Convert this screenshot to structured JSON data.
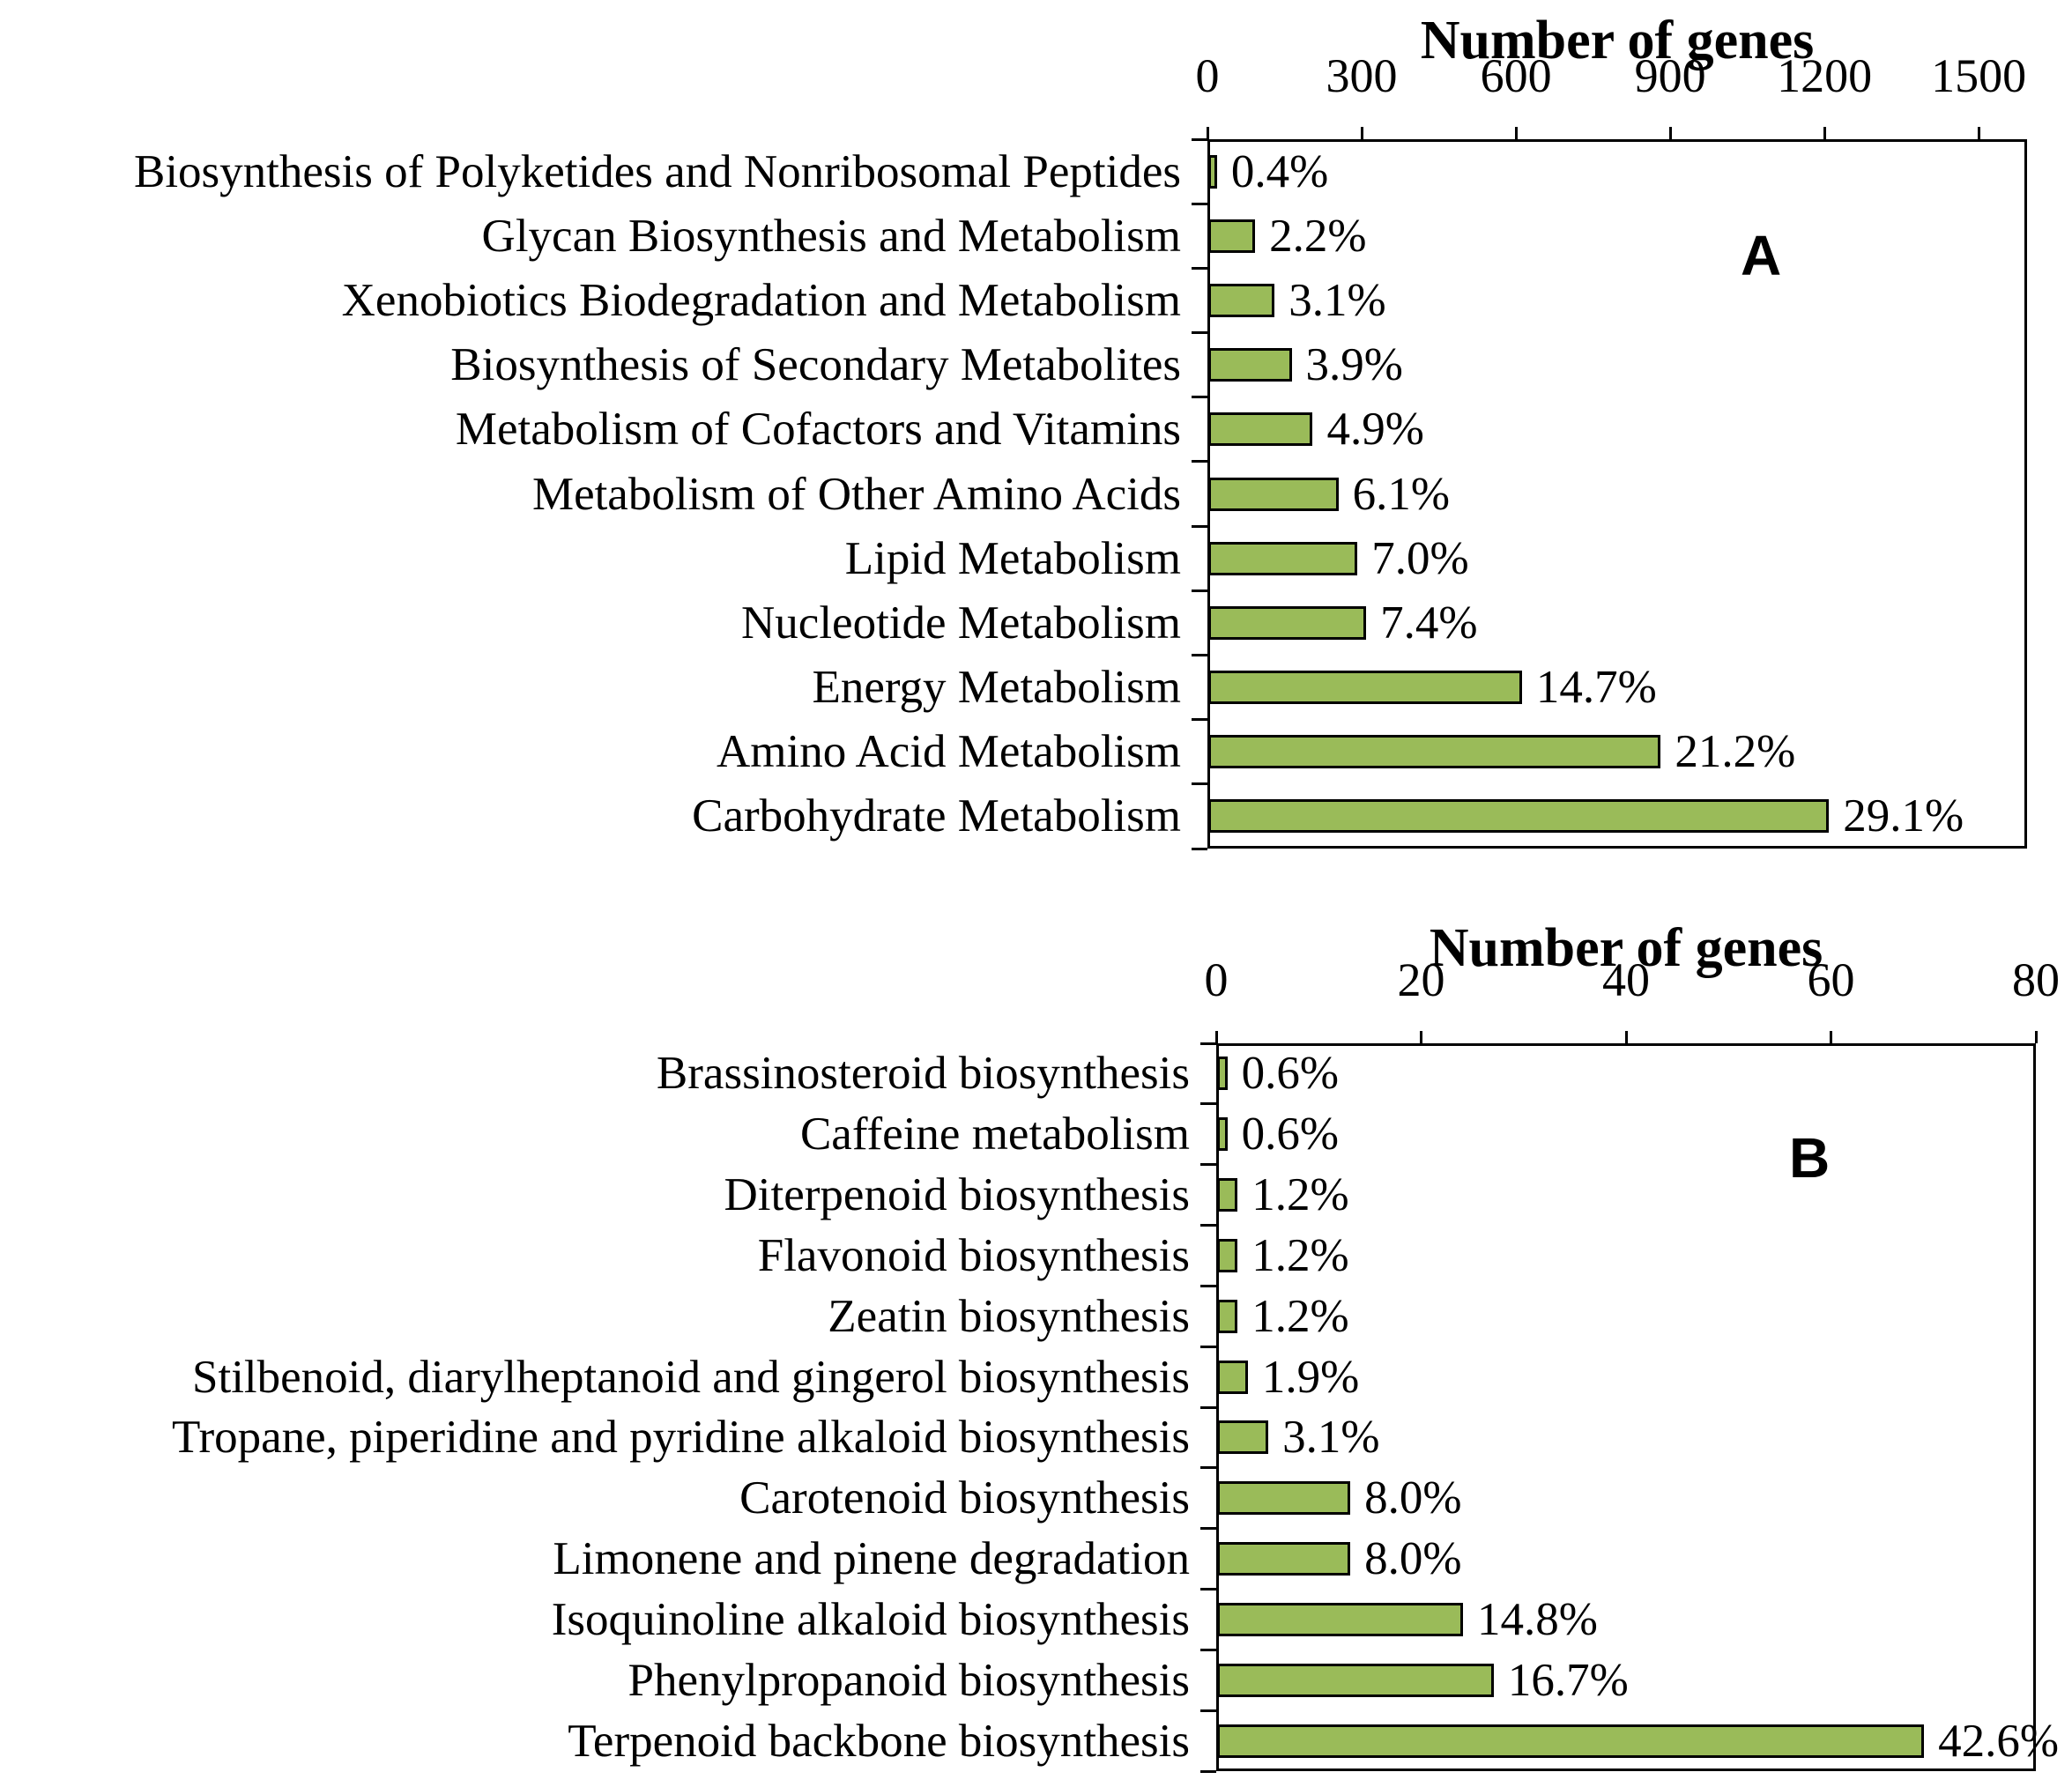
{
  "figure": {
    "description_visible_text_only": true
  },
  "chart_data": [
    {
      "type": "bar",
      "orientation": "horizontal",
      "panel_label": "A",
      "title": "Number of genes",
      "xlabel": "Number of genes",
      "x_ticks": [
        0,
        300,
        600,
        900,
        1200,
        1500
      ],
      "xlim": [
        0,
        1594
      ],
      "grid": false,
      "bar_color": "#9ABB59",
      "bar_border_color": "#000000",
      "categories": [
        "Biosynthesis of Polyketides and Nonribosomal Peptides",
        "Glycan Biosynthesis and Metabolism",
        "Xenobiotics Biodegradation and Metabolism",
        "Biosynthesis of Secondary Metabolites",
        "Metabolism of Cofactors and Vitamins",
        "Metabolism of Other Amino Acids",
        "Lipid Metabolism",
        "Nucleotide Metabolism",
        "Energy Metabolism",
        "Amino Acid Metabolism",
        "Carbohydrate Metabolism"
      ],
      "values": [
        17,
        91,
        129,
        162,
        203,
        253,
        290,
        307,
        610,
        880,
        1207
      ],
      "values_estimated": true,
      "percent_labels": [
        "0.4%",
        "2.2%",
        "3.1%",
        "3.9%",
        "4.9%",
        "6.1%",
        "7.0%",
        "7.4%",
        "14.7%",
        "21.2%",
        "29.1%"
      ]
    },
    {
      "type": "bar",
      "orientation": "horizontal",
      "panel_label": "B",
      "title": "Number of genes",
      "xlabel": "Number of genes",
      "x_ticks": [
        0,
        20,
        40,
        60,
        80
      ],
      "xlim": [
        0,
        80
      ],
      "grid": false,
      "bar_color": "#9ABB59",
      "bar_border_color": "#000000",
      "categories": [
        "Brassinosteroid biosynthesis",
        "Caffeine metabolism",
        "Diterpenoid biosynthesis",
        "Flavonoid biosynthesis",
        "Zeatin biosynthesis",
        "Stilbenoid, diarylheptanoid and gingerol biosynthesis",
        "Tropane, piperidine and pyridine alkaloid biosynthesis",
        "Carotenoid biosynthesis",
        "Limonene and pinene degradation",
        "Isoquinoline alkaloid biosynthesis",
        "Phenylpropanoid biosynthesis",
        "Terpenoid backbone biosynthesis"
      ],
      "values": [
        1,
        1,
        2,
        2,
        2,
        3,
        5,
        13,
        13,
        24,
        27,
        69
      ],
      "values_estimated": true,
      "percent_labels": [
        "0.6%",
        "0.6%",
        "1.2%",
        "1.2%",
        "1.2%",
        "1.9%",
        "3.1%",
        "8.0%",
        "8.0%",
        "14.8%",
        "16.7%",
        "42.6%"
      ]
    }
  ]
}
